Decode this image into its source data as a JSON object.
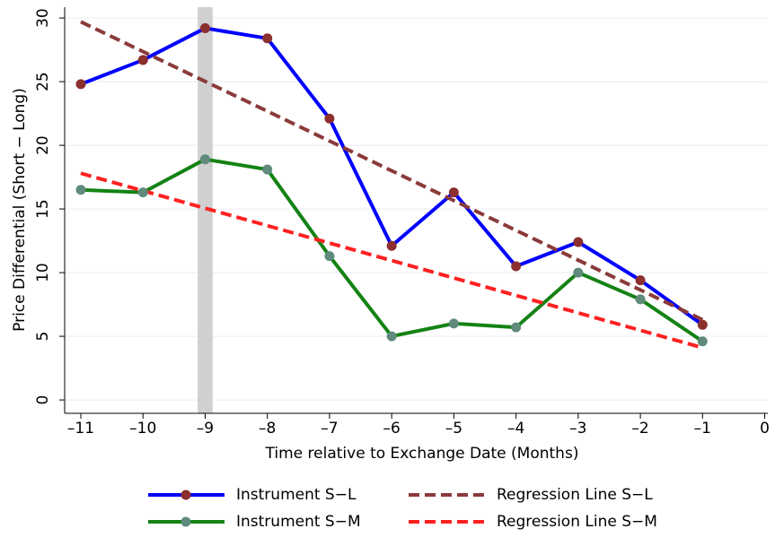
{
  "chart_data": {
    "type": "line",
    "xlabel": "Time relative to Exchange Date (Months)",
    "ylabel": "Price Differential (Short − Long)",
    "xlim": [
      -11.26,
      0.05
    ],
    "ylim": [
      -1.05,
      30.85
    ],
    "xticks": [
      {
        "value": -11,
        "label": "–11"
      },
      {
        "value": -10,
        "label": "–10"
      },
      {
        "value": -9,
        "label": "–9"
      },
      {
        "value": -8,
        "label": "–8"
      },
      {
        "value": -7,
        "label": "–7"
      },
      {
        "value": -6,
        "label": "–6"
      },
      {
        "value": -5,
        "label": "–5"
      },
      {
        "value": -4,
        "label": "–4"
      },
      {
        "value": -3,
        "label": "–3"
      },
      {
        "value": -2,
        "label": "–2"
      },
      {
        "value": -1,
        "label": "–1"
      },
      0
    ],
    "yticks": [
      0,
      5,
      10,
      15,
      20,
      25,
      30
    ],
    "grid": true,
    "shaded_band": {
      "x": [
        -9.12,
        -8.88
      ],
      "color": "#d0d0d0"
    },
    "series": [
      {
        "name": "Instrument S−L",
        "color": "#0000ff",
        "style": "solid",
        "marker_color": "#8b2f2f",
        "x": [
          -11,
          -10,
          -9,
          -8,
          -7,
          -6,
          -5,
          -4,
          -3,
          -2,
          -1
        ],
        "values": [
          24.8,
          26.7,
          29.2,
          28.4,
          22.1,
          12.1,
          16.3,
          10.5,
          12.4,
          9.4,
          5.9
        ]
      },
      {
        "name": "Regression Line S−L",
        "color": "#8b3a3a",
        "style": "dashed",
        "x": [
          -11,
          -1
        ],
        "values": [
          29.7,
          6.3
        ]
      },
      {
        "name": "Instrument S−M",
        "color": "#148214",
        "style": "solid",
        "marker_color": "#5f8a7c",
        "x": [
          -11,
          -10,
          -9,
          -8,
          -7,
          -6,
          -5,
          -4,
          -3,
          -2,
          -1
        ],
        "values": [
          16.5,
          16.3,
          18.9,
          18.1,
          11.3,
          5.0,
          6.0,
          5.7,
          10.0,
          7.9,
          4.6
        ]
      },
      {
        "name": "Regression Line S−M",
        "color": "#ff2020",
        "style": "dashed",
        "x": [
          -11,
          -1
        ],
        "values": [
          17.8,
          4.1
        ]
      }
    ]
  }
}
